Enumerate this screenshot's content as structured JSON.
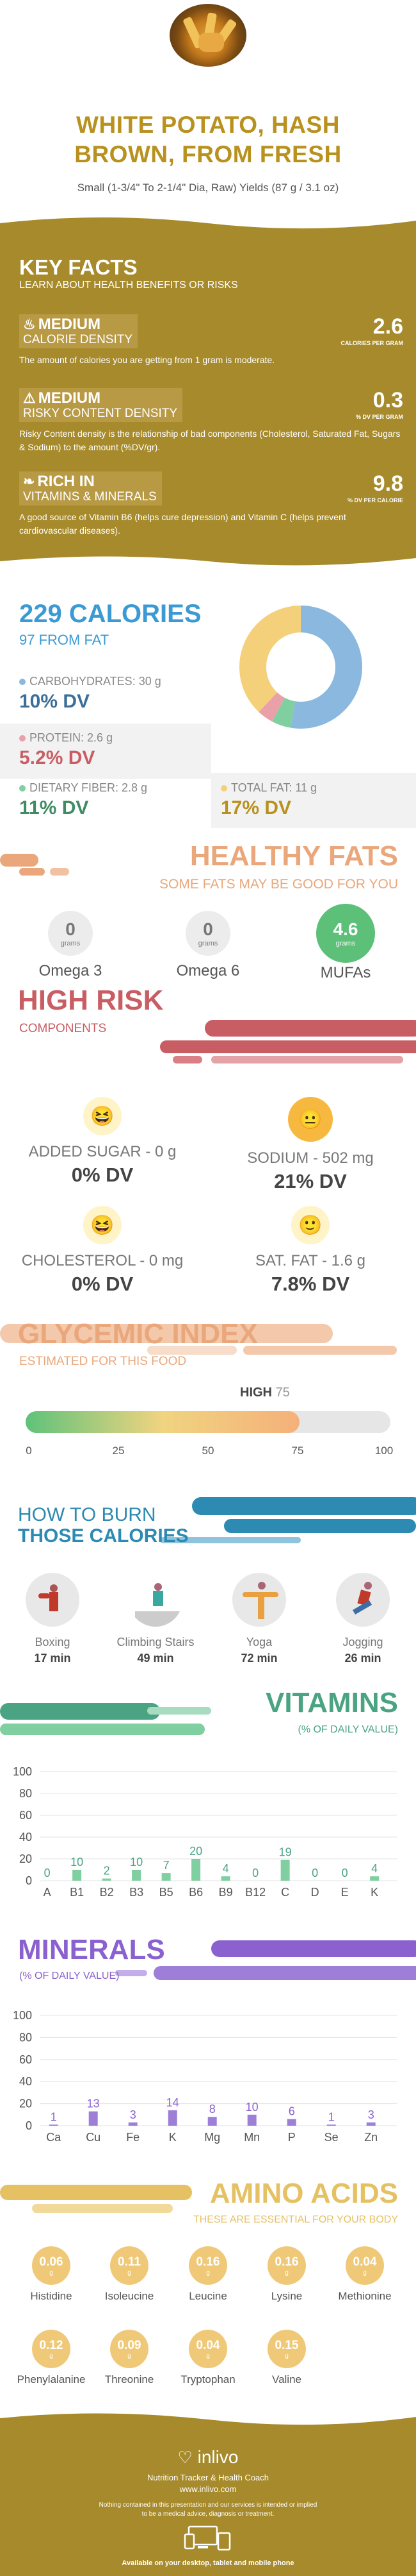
{
  "header": {
    "title_line1": "WHITE POTATO, HASH",
    "title_line2": "BROWN, FROM FRESH",
    "subtitle": "Small (1-3/4\" To 2-1/4\" Dia, Raw) Yields (87 g / 3.1 oz)"
  },
  "key_facts": {
    "title": "KEY FACTS",
    "subtitle": "LEARN ABOUT HEALTH BENEFITS OR RISKS",
    "facts": [
      {
        "level": "MEDIUM",
        "name": "CALORIE DENSITY",
        "value": "2.6",
        "unit": "CALORIES PER GRAM",
        "desc": "The amount of calories you are getting from 1 gram is moderate.",
        "icon": "flame-icon"
      },
      {
        "level": "MEDIUM",
        "name": "RISKY CONTENT DENSITY",
        "value": "0.3",
        "unit": "% DV PER GRAM",
        "desc": "Risky Content density is the relationship of bad components (Cholesterol, Saturated Fat, Sugars & Sodium) to the amount (%DV/gr).",
        "icon": "warning-icon"
      },
      {
        "level": "RICH  IN",
        "name": "VITAMINS & MINERALS",
        "value": "9.8",
        "unit": "% DV PER CALORIE",
        "desc": "A good source of Vitamin B6 (helps cure depression) and Vitamin C (helps prevent cardiovascular diseases).",
        "icon": "leaf-icon"
      }
    ]
  },
  "calories": {
    "title": "229 CALORIES",
    "subtitle": "97 FROM FAT",
    "macros": [
      {
        "label": "CARBOHYDRATES: 30 g",
        "dv": "10% DV",
        "color": "#8ab8de"
      },
      {
        "label": "PROTEIN: 2.6 g",
        "dv": "5.2% DV",
        "color": "#e9a0a8"
      },
      {
        "label": "DIETARY FIBER: 2.8 g",
        "dv": "11% DV",
        "color": "#7fcfa0"
      },
      {
        "label": "TOTAL FAT: 11 g",
        "dv": "17% DV",
        "color": "#f5d07a"
      }
    ]
  },
  "healthy_fats": {
    "title": "HEALTHY FATS",
    "subtitle": "SOME FATS MAY BE GOOD FOR YOU",
    "items": [
      {
        "value": "0",
        "unit": "grams",
        "name": "Omega 3"
      },
      {
        "value": "0",
        "unit": "grams",
        "name": "Omega 6"
      },
      {
        "value": "4.6",
        "unit": "grams",
        "name": "MUFAs"
      }
    ]
  },
  "high_risk": {
    "title": "HIGH RISK",
    "subtitle": "COMPONENTS",
    "items": [
      {
        "label": "ADDED SUGAR - 0 g",
        "dv": "0% DV"
      },
      {
        "label": "SODIUM - 502 mg",
        "dv": "21% DV"
      },
      {
        "label": "CHOLESTEROL - 0 mg",
        "dv": "0% DV"
      },
      {
        "label": "SAT. FAT - 1.6 g",
        "dv": "7.8% DV"
      }
    ]
  },
  "glycemic": {
    "title": "GLYCEMIC INDEX",
    "subtitle": "ESTIMATED FOR THIS FOOD",
    "level": "HIGH",
    "value": "75",
    "value_num": 75,
    "ticks": [
      "0",
      "25",
      "50",
      "75",
      "100"
    ]
  },
  "burn": {
    "title1": "HOW TO BURN",
    "title2": "THOSE CALORIES",
    "activities": [
      {
        "name": "Boxing",
        "time": "17 min"
      },
      {
        "name": "Climbing Stairs",
        "time": "49 min"
      },
      {
        "name": "Yoga",
        "time": "72 min"
      },
      {
        "name": "Jogging",
        "time": "26 min"
      }
    ]
  },
  "vitamins": {
    "title": "VITAMINS",
    "subtitle": "(% OF DAILY VALUE)"
  },
  "minerals": {
    "title": "MINERALS",
    "subtitle": "(% OF DAILY VALUE)"
  },
  "chart_data": [
    {
      "type": "bar",
      "title": "VITAMINS",
      "subtitle": "(% OF DAILY VALUE)",
      "categories": [
        "A",
        "B1",
        "B2",
        "B3",
        "B5",
        "B6",
        "B9",
        "B12",
        "C",
        "D",
        "E",
        "K"
      ],
      "values": [
        0,
        10,
        2,
        10,
        7,
        20,
        4,
        0,
        19,
        0,
        0,
        4
      ],
      "ylim": [
        0,
        100
      ],
      "yticks": [
        0,
        20,
        40,
        60,
        80,
        100
      ],
      "color": "#7fcfa0",
      "label_color": "#4aa383"
    },
    {
      "type": "bar",
      "title": "MINERALS",
      "subtitle": "(% OF DAILY VALUE)",
      "categories": [
        "Ca",
        "Cu",
        "Fe",
        "K",
        "Mg",
        "Mn",
        "P",
        "Se",
        "Zn"
      ],
      "values": [
        1,
        13,
        3,
        14,
        8,
        10,
        6,
        1,
        3
      ],
      "ylim": [
        0,
        100
      ],
      "yticks": [
        0,
        20,
        40,
        60,
        80,
        100
      ],
      "color": "#9e7fd8",
      "label_color": "#8b61cf"
    }
  ],
  "amino": {
    "title": "AMINO ACIDS",
    "subtitle": "THESE ARE ESSENTIAL FOR YOUR BODY",
    "unit": "g",
    "items": [
      {
        "name": "Histidine",
        "value": "0.06"
      },
      {
        "name": "Isoleucine",
        "value": "0.11"
      },
      {
        "name": "Leucine",
        "value": "0.16"
      },
      {
        "name": "Lysine",
        "value": "0.16"
      },
      {
        "name": "Methionine",
        "value": "0.04"
      },
      {
        "name": "Phenylalanine",
        "value": "0.12"
      },
      {
        "name": "Threonine",
        "value": "0.09"
      },
      {
        "name": "Tryptophan",
        "value": "0.04"
      },
      {
        "name": "Valine",
        "value": "0.15"
      }
    ]
  },
  "footer": {
    "brand": "inlivo",
    "tagline": "Nutrition Tracker & Health Coach",
    "url": "www.inlivo.com",
    "disclaimer1": "Nothing contained in this presentation and our services is intended or implied",
    "disclaimer2": "to be a medical advice, diagnosis or treatment.",
    "available": "Available on your desktop, tablet and mobile phone"
  }
}
